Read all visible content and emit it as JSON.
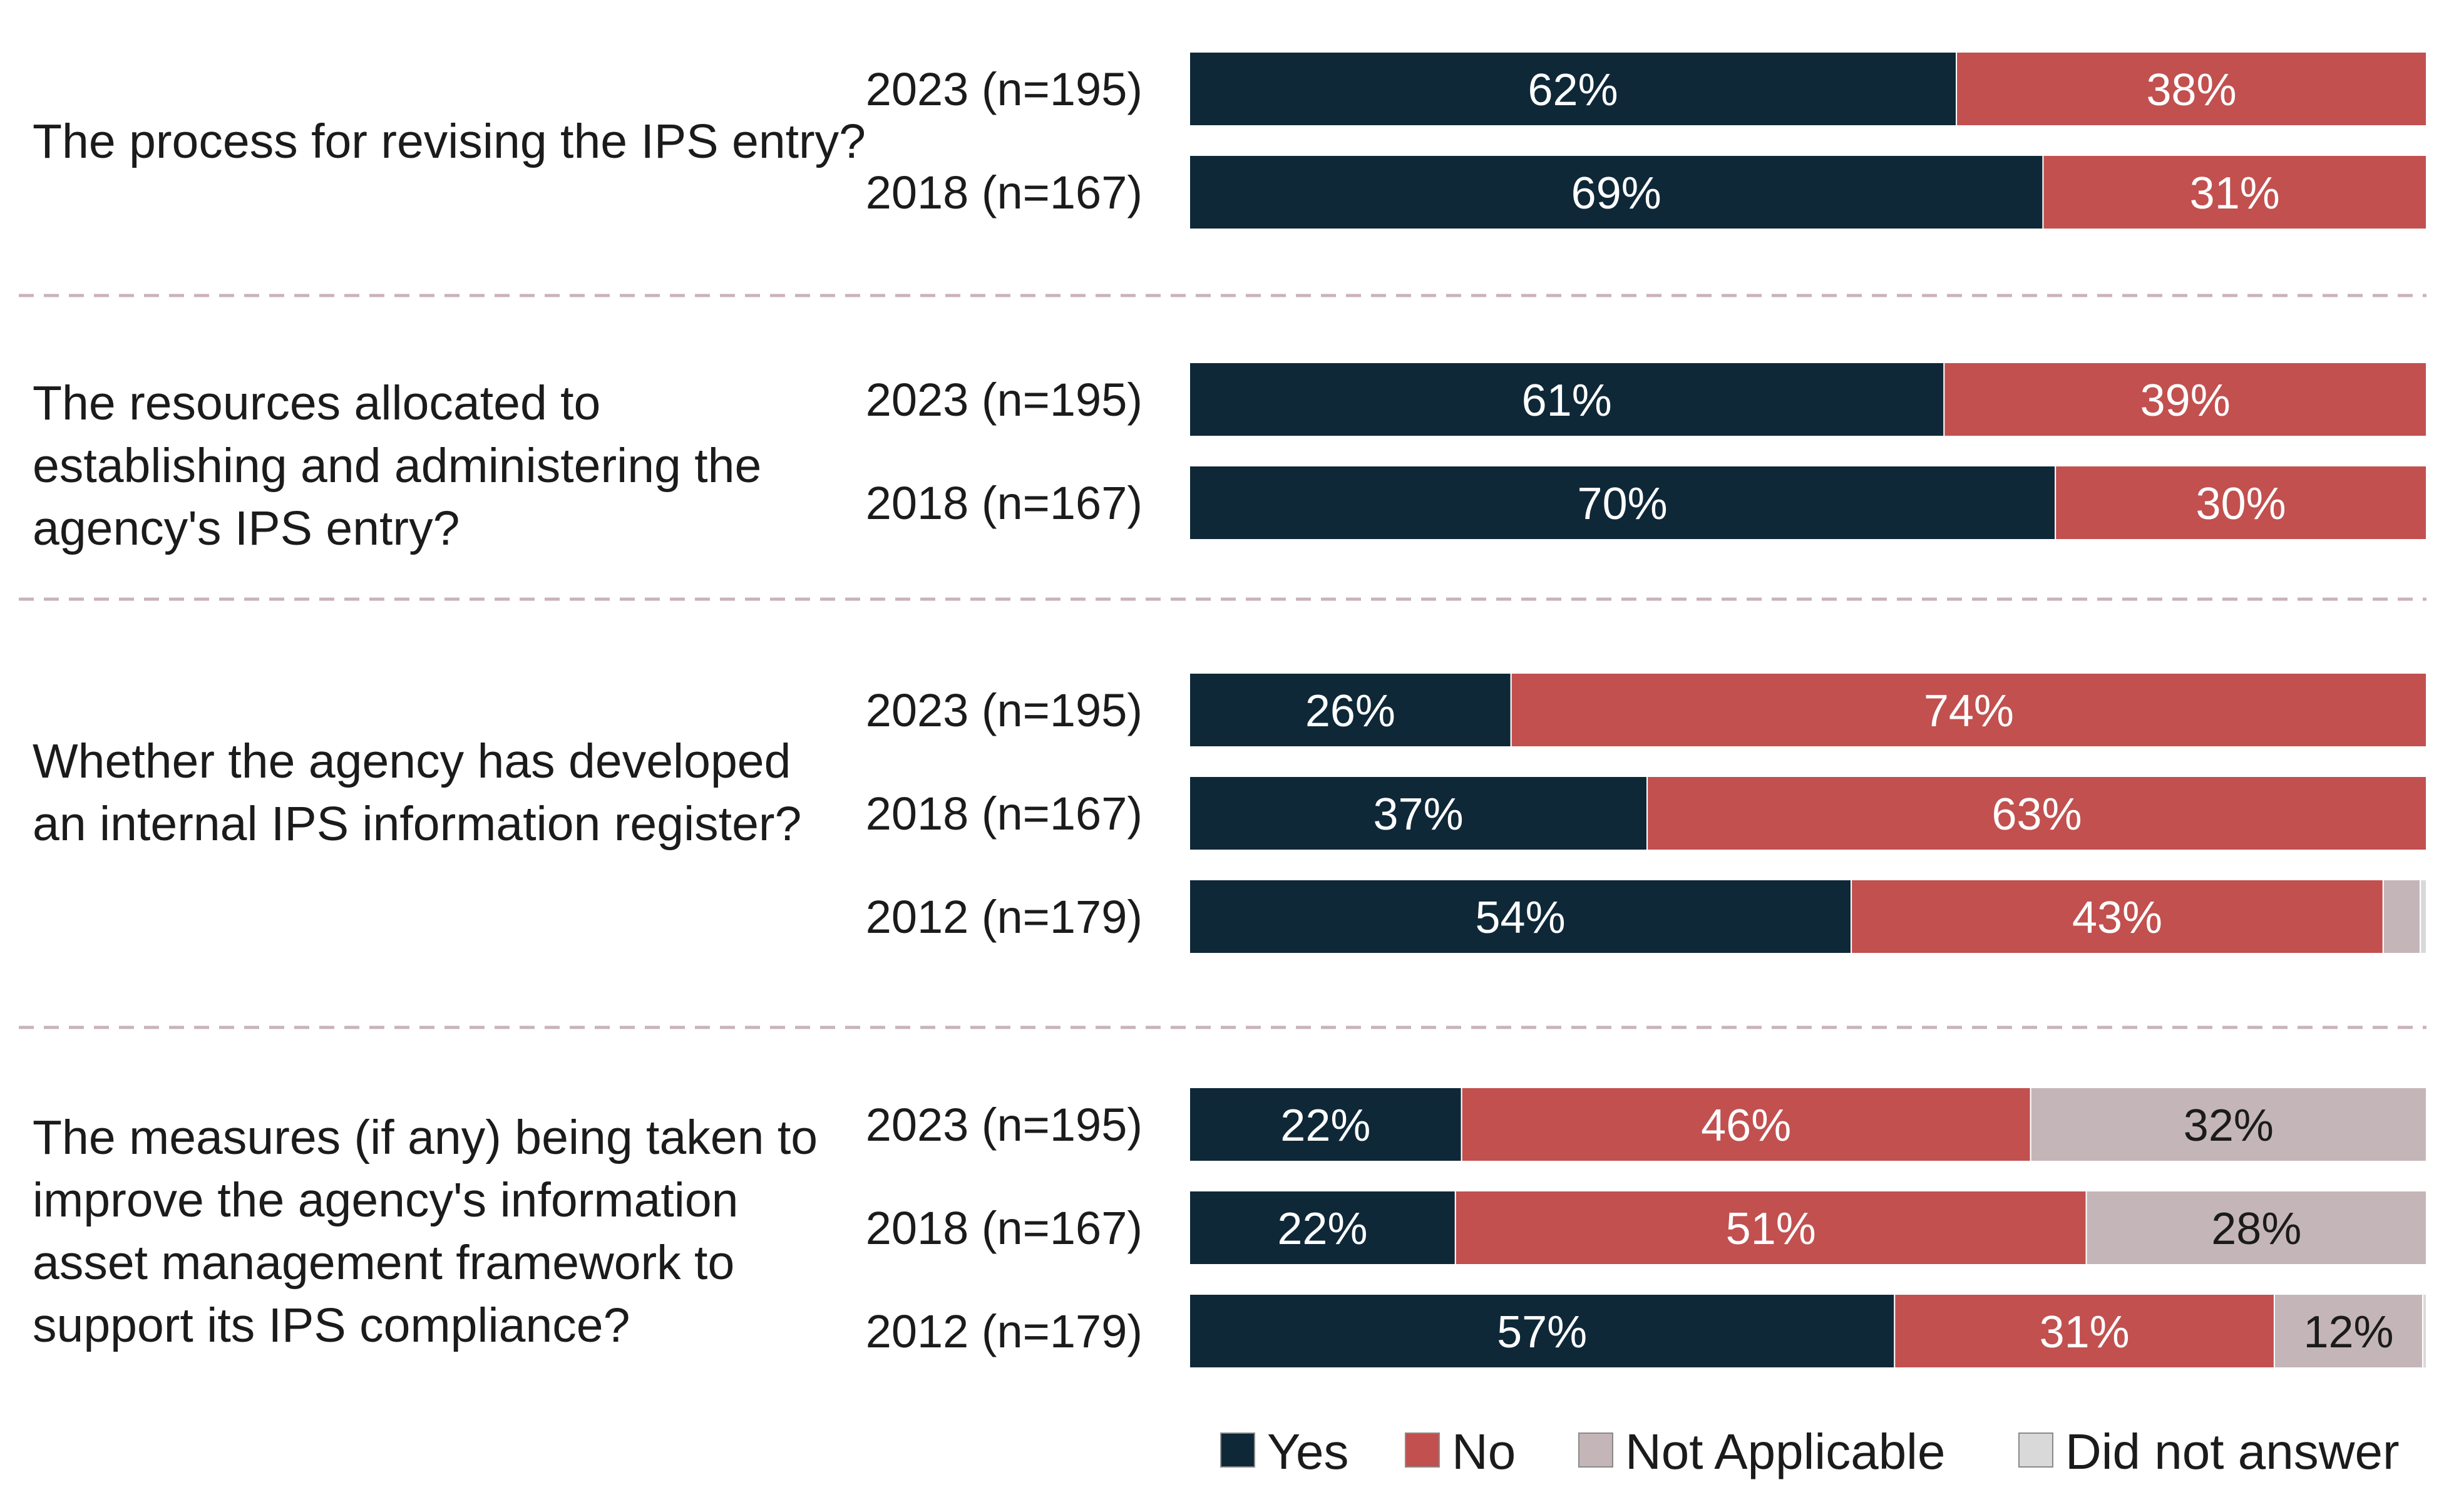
{
  "chart_data": {
    "type": "bar",
    "orientation": "horizontal",
    "stacked": true,
    "xlim": [
      0,
      100
    ],
    "title": "",
    "xlabel": "",
    "ylabel": "",
    "legend_position": "bottom-right",
    "series": [
      {
        "name": "Yes",
        "color": "#0e2838",
        "label_color": "#ffffff"
      },
      {
        "name": "No",
        "color": "#c1504f",
        "label_color": "#ffffff"
      },
      {
        "name": "Not Applicable",
        "color": "#c4b6b8",
        "label_color": "#1b1b1b"
      },
      {
        "name": "Did not answer",
        "color": "#d9d9d9",
        "label_color": "#1b1b1b"
      }
    ],
    "groups": [
      {
        "question_lines": [
          "The process for revising the IPS entry?"
        ],
        "rows": [
          {
            "label": "2023 (n=195)",
            "values": [
              62,
              38,
              0,
              0
            ],
            "labels": [
              "62%",
              "38%",
              "",
              ""
            ]
          },
          {
            "label": "2018 (n=167)",
            "values": [
              69,
              31,
              0,
              0
            ],
            "labels": [
              "69%",
              "31%",
              "",
              ""
            ]
          }
        ]
      },
      {
        "question_lines": [
          "The resources allocated to",
          "establishing and administering the",
          "agency's IPS entry?"
        ],
        "rows": [
          {
            "label": "2023 (n=195)",
            "values": [
              61,
              39,
              0,
              0
            ],
            "labels": [
              "61%",
              "39%",
              "",
              ""
            ]
          },
          {
            "label": "2018 (n=167)",
            "values": [
              70,
              30,
              0,
              0
            ],
            "labels": [
              "70%",
              "30%",
              "",
              ""
            ]
          }
        ]
      },
      {
        "question_lines": [
          "Whether the agency has developed",
          "an internal IPS information register?"
        ],
        "rows": [
          {
            "label": "2023 (n=195)",
            "values": [
              26,
              74,
              0,
              0
            ],
            "labels": [
              "26%",
              "74%",
              "",
              ""
            ]
          },
          {
            "label": "2018 (n=167)",
            "values": [
              37,
              63,
              0,
              0
            ],
            "labels": [
              "37%",
              "63%",
              "",
              ""
            ]
          },
          {
            "label": "2012 (n=179)",
            "values": [
              53.5,
              43,
              3,
              0.5
            ],
            "labels": [
              "54%",
              "43%",
              "",
              ""
            ]
          }
        ]
      },
      {
        "question_lines": [
          "The measures (if any) being taken to",
          "improve the agency's information",
          "asset management framework to",
          "support its IPS compliance?"
        ],
        "rows": [
          {
            "label": "2023 (n=195)",
            "values": [
              22,
              46,
              32,
              0
            ],
            "labels": [
              "22%",
              "46%",
              "32%",
              ""
            ]
          },
          {
            "label": "2018 (n=167)",
            "values": [
              21.5,
              51,
              27.5,
              0
            ],
            "labels": [
              "22%",
              "51%",
              "28%",
              ""
            ]
          },
          {
            "label": "2012 (n=179)",
            "values": [
              57,
              30.7,
              12,
              0.3
            ],
            "labels": [
              "57%",
              "31%",
              "12%",
              ""
            ]
          }
        ]
      }
    ]
  }
}
